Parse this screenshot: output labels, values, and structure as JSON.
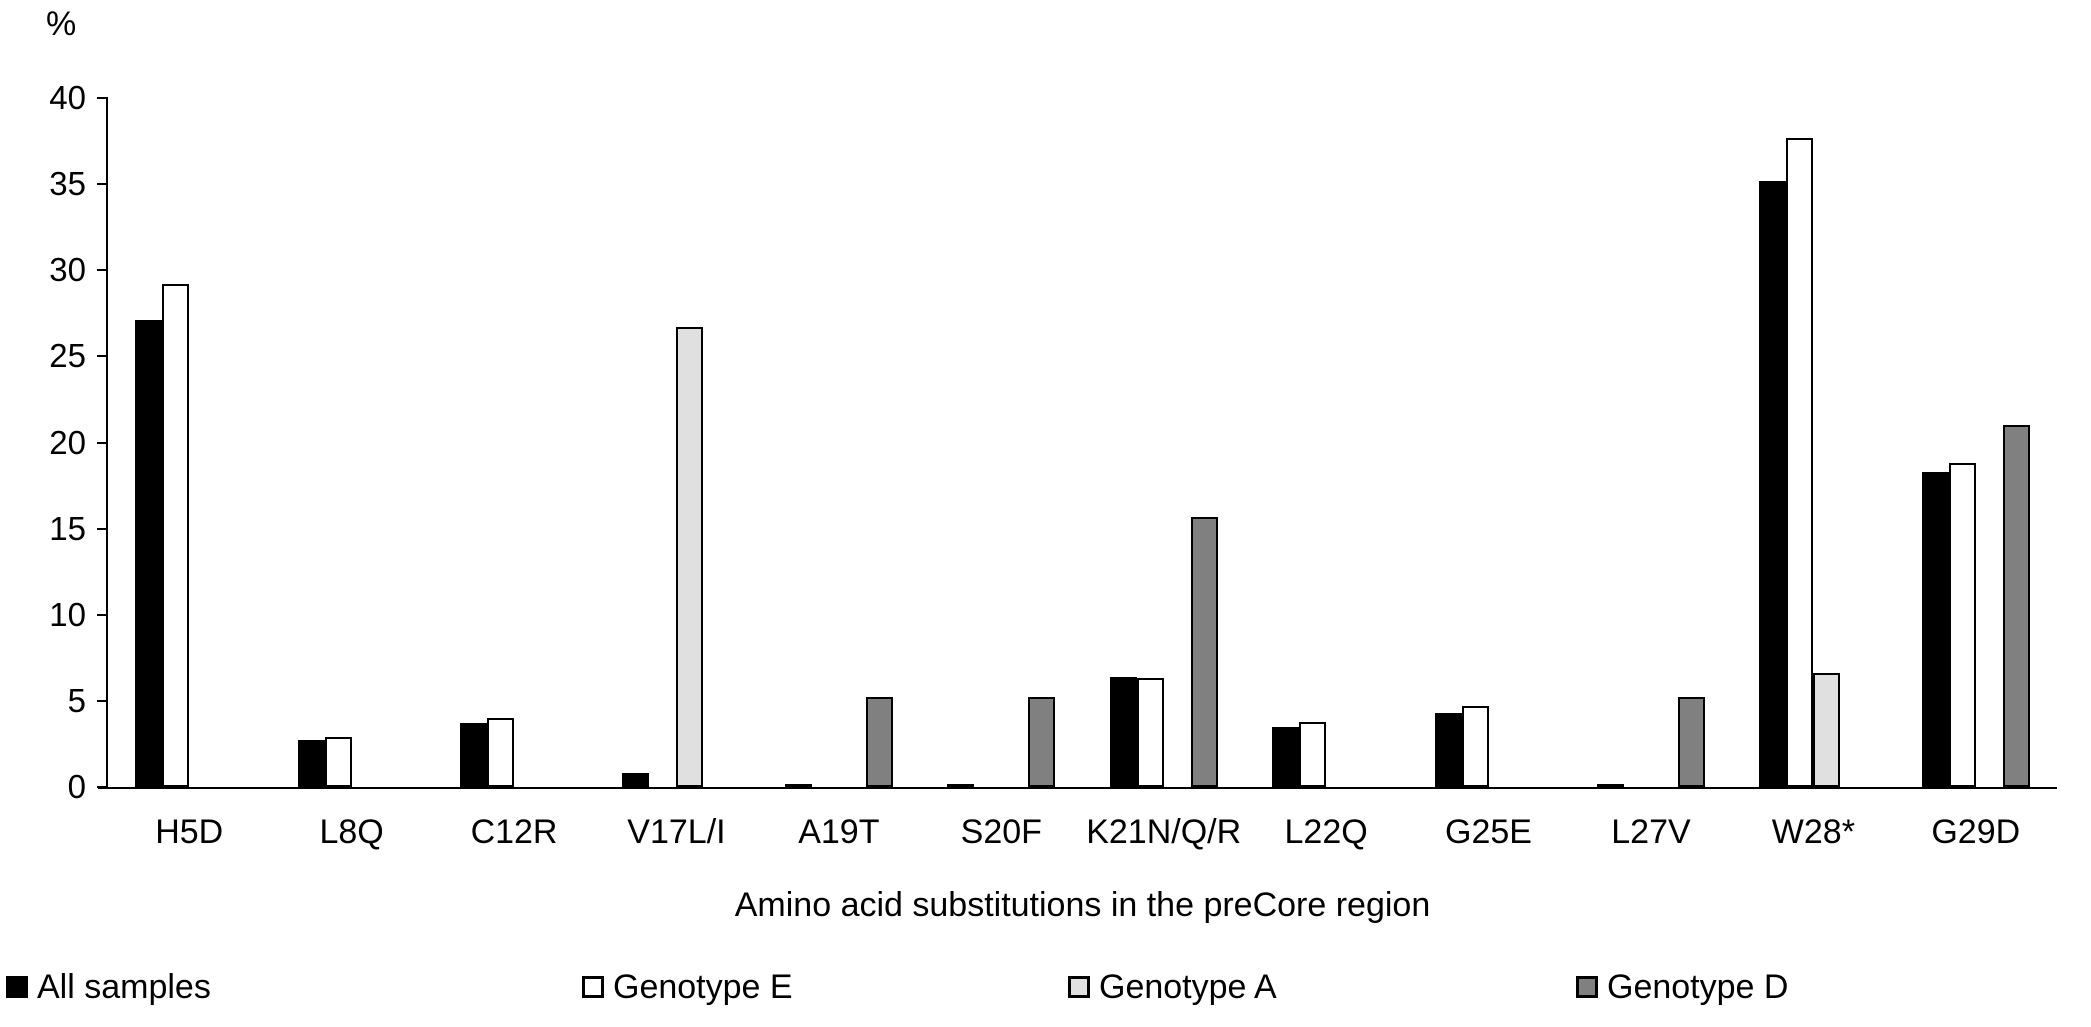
{
  "chart_data": {
    "type": "bar",
    "title": "",
    "ylabel": "%",
    "xlabel": "Amino acid substitutions in the preCore region",
    "ylim": [
      0,
      40
    ],
    "yticks": [
      0,
      5,
      10,
      15,
      20,
      25,
      30,
      35,
      40
    ],
    "grid": false,
    "legend_position": "bottom",
    "background_color": "#ffffff",
    "axis_color": "#000000",
    "categories": [
      "H5D",
      "L8Q",
      "C12R",
      "V17L/I",
      "A19T",
      "S20F",
      "K21N/Q/R",
      "L22Q",
      "G25E",
      "L27V",
      "W28*",
      "G29D"
    ],
    "series": [
      {
        "name": "All samples",
        "color": "#000000",
        "values": [
          27.1,
          2.7,
          3.7,
          0.8,
          0.2,
          0.2,
          6.4,
          3.5,
          4.3,
          0.2,
          35.2,
          18.3
        ]
      },
      {
        "name": "Genotype E",
        "color": "#ffffff",
        "values": [
          29.2,
          2.9,
          4.0,
          0,
          0,
          0,
          6.3,
          3.8,
          4.7,
          0,
          37.7,
          18.8
        ]
      },
      {
        "name": "Genotype A",
        "color": "#e0e0e0",
        "values": [
          0,
          0,
          0,
          26.7,
          0,
          0,
          0,
          0,
          0,
          0,
          6.6,
          0
        ]
      },
      {
        "name": "Genotype D",
        "color": "#808080",
        "values": [
          0,
          0,
          0,
          0,
          5.2,
          5.2,
          15.7,
          0,
          0,
          5.2,
          0,
          21.0
        ]
      }
    ]
  }
}
